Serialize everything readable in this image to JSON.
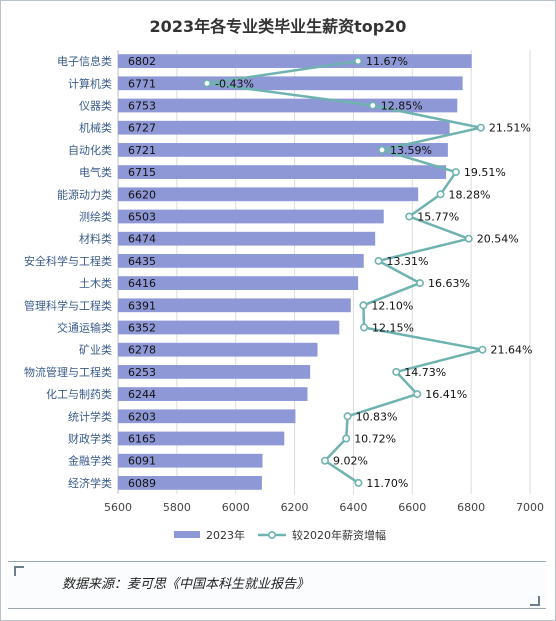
{
  "chart_data": {
    "type": "bar+line",
    "title": "2023年各专业类毕业生薪资top20",
    "categories": [
      "电子信息类",
      "计算机类",
      "仪器类",
      "机械类",
      "自动化类",
      "电气类",
      "能源动力类",
      "测绘类",
      "材料类",
      "安全科学与工程类",
      "土木类",
      "管理科学与工程类",
      "交通运输类",
      "矿业类",
      "物流管理与工程类",
      "化工与制药类",
      "统计学类",
      "财政学类",
      "金融学类",
      "经济学类"
    ],
    "series": [
      {
        "name": "2023年",
        "type": "bar",
        "color": "#8e98d6",
        "values": [
          6802,
          6771,
          6753,
          6727,
          6721,
          6715,
          6620,
          6503,
          6474,
          6435,
          6416,
          6391,
          6352,
          6278,
          6253,
          6244,
          6203,
          6165,
          6091,
          6089
        ],
        "value_labels": [
          "6802",
          "6771",
          "6753",
          "6727",
          "6721",
          "6715",
          "6620",
          "6503",
          "6474",
          "6435",
          "6416",
          "6391",
          "6352",
          "6278",
          "6253",
          "6244",
          "6203",
          "6165",
          "6091",
          "6089"
        ]
      },
      {
        "name": "较2020年薪资增幅",
        "type": "line",
        "color": "#6fb3b0",
        "values": [
          11.67,
          -0.43,
          12.85,
          21.51,
          13.59,
          19.51,
          18.28,
          15.77,
          20.54,
          13.31,
          16.63,
          12.1,
          12.15,
          21.64,
          14.73,
          16.41,
          10.83,
          10.72,
          9.02,
          11.7
        ],
        "value_labels": [
          "11.67%",
          "-0.43%",
          "12.85%",
          "21.51%",
          "13.59%",
          "19.51%",
          "18.28%",
          "15.77%",
          "20.54%",
          "13.31%",
          "16.63%",
          "12.10%",
          "12.15%",
          "21.64%",
          "14.73%",
          "16.41%",
          "10.83%",
          "10.72%",
          "9.02%",
          "11.70%"
        ]
      }
    ],
    "x_axis": {
      "ticks": [
        5600,
        5800,
        6000,
        6200,
        6400,
        6600,
        6800,
        7000
      ],
      "tick_labels": [
        "5600",
        "5800",
        "6000",
        "6200",
        "6400",
        "6600",
        "6800",
        "7000"
      ],
      "range": [
        5600,
        7000
      ]
    },
    "grid": true,
    "legend": "bottom"
  },
  "source_text": "数据来源：麦可思《中国本科生就业报告》"
}
